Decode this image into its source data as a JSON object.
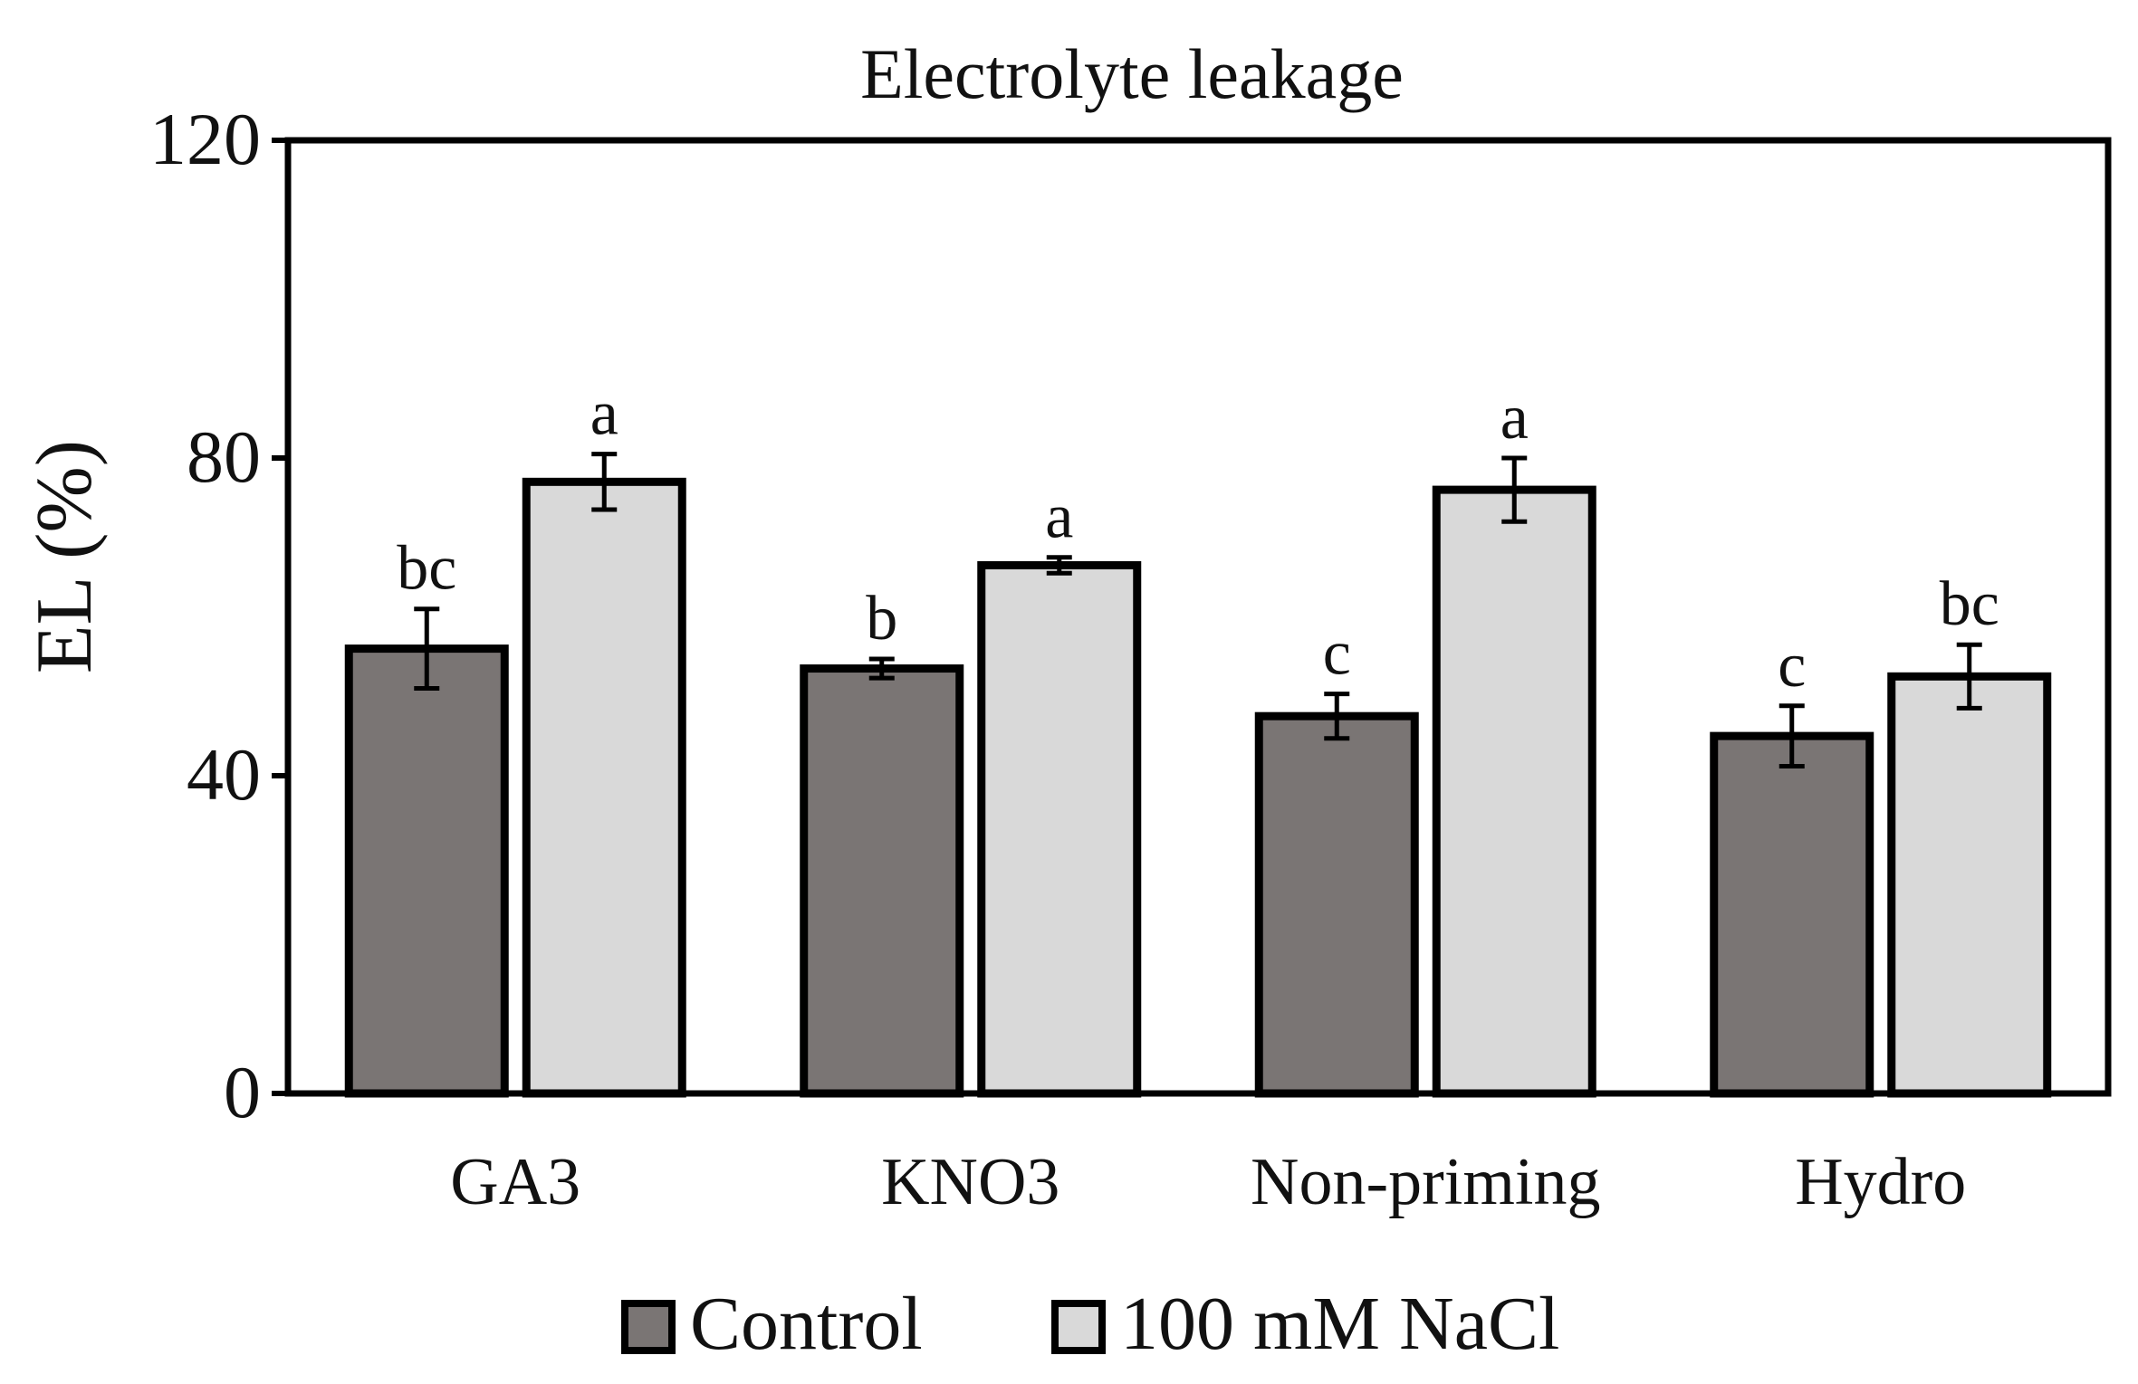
{
  "chart_data": {
    "type": "bar",
    "title": "Electrolyte leakage",
    "xlabel": "",
    "ylabel": "EL (%)",
    "ylim": [
      0,
      120
    ],
    "yticks": [
      0,
      40,
      80,
      120
    ],
    "grid": false,
    "legend_position": "bottom-center",
    "categories": [
      "GA3",
      "KNO3",
      "Non-priming",
      "Hydro"
    ],
    "series": [
      {
        "name": "Control",
        "color": "#7a7574",
        "values": [
          56,
          53.5,
          47.5,
          45
        ],
        "errors": [
          5,
          1.2,
          2.8,
          3.8
        ],
        "letters": [
          "bc",
          "b",
          "c",
          "c"
        ]
      },
      {
        "name": "100 mM NaCl",
        "color": "#d9d9d9",
        "values": [
          77,
          66.5,
          76,
          52.5
        ],
        "errors": [
          3.5,
          1,
          4,
          4
        ],
        "letters": [
          "a",
          "a",
          "a",
          "bc"
        ]
      }
    ]
  }
}
